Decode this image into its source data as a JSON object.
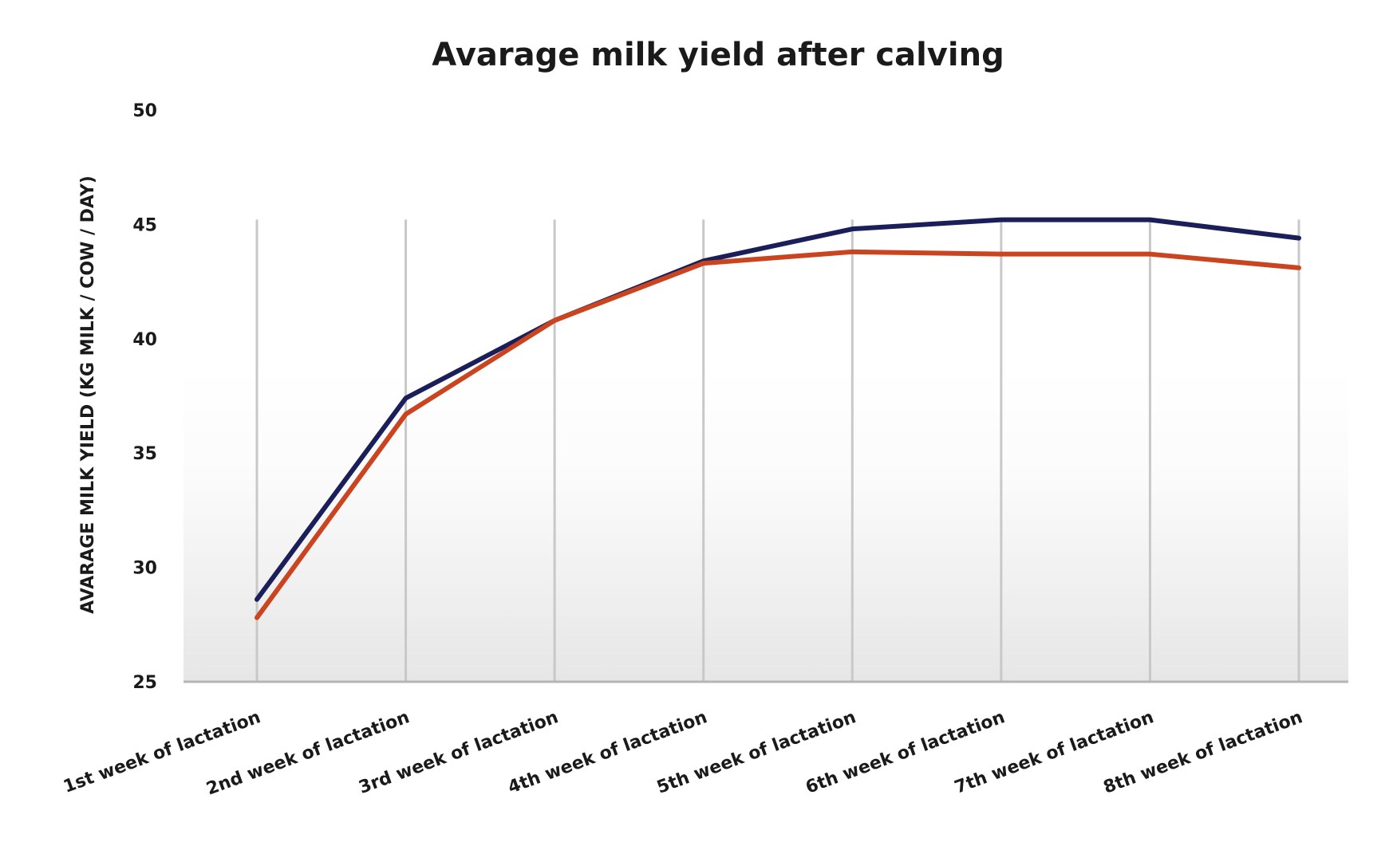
{
  "chart_data": {
    "type": "line",
    "title": "Avarage milk yield after calving",
    "xlabel": "",
    "ylabel": "AVARAGE MILK YIELD (KG MILK / COW / DAY)",
    "ylim": [
      25,
      50
    ],
    "yticks": [
      "25",
      "30",
      "35",
      "40",
      "45",
      "50"
    ],
    "grid": "vertical",
    "legend": "none",
    "categories": [
      "1st week of lactation",
      "2nd week of lactation",
      "3rd week of lactation",
      "4th week of lactation",
      "5th week of lactation",
      "6th week of lactation",
      "7th week of lactation",
      "8th week of lactation"
    ],
    "series": [
      {
        "color": "#1a1f5a",
        "values": [
          28.6,
          37.4,
          40.8,
          43.4,
          44.8,
          45.2,
          45.2,
          44.4
        ]
      },
      {
        "color": "#c9441f",
        "values": [
          27.8,
          36.7,
          40.8,
          43.3,
          43.8,
          43.7,
          43.7,
          43.1
        ]
      }
    ]
  }
}
